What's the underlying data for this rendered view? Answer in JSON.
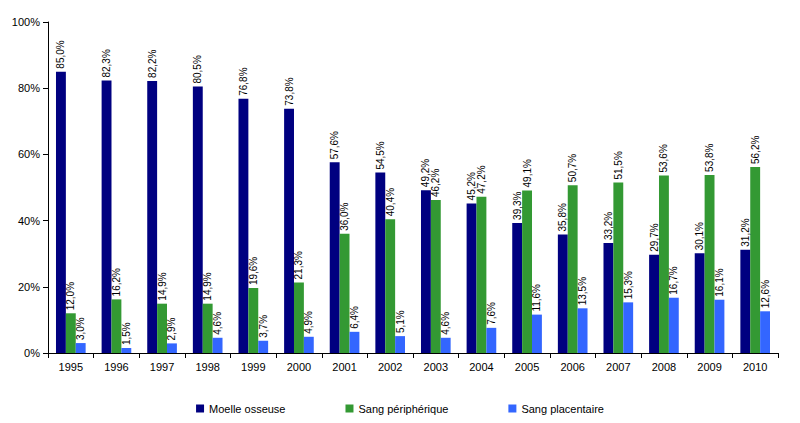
{
  "chart_data": {
    "type": "bar",
    "categories": [
      "1995",
      "1996",
      "1997",
      "1998",
      "1999",
      "2000",
      "2001",
      "2002",
      "2003",
      "2004",
      "2005",
      "2006",
      "2007",
      "2008",
      "2009",
      "2010"
    ],
    "series": [
      {
        "name": "Moelle osseuse",
        "color": "#000080",
        "values": [
          85.0,
          82.3,
          82.2,
          80.5,
          76.8,
          73.8,
          57.6,
          54.5,
          49.2,
          45.2,
          39.3,
          35.8,
          33.2,
          29.7,
          30.1,
          31.2
        ],
        "value_labels": [
          "85,0%",
          "82,3%",
          "82,2%",
          "80,5%",
          "76,8%",
          "73,8%",
          "57,6%",
          "54,5%",
          "49,2%",
          "45,2%",
          "39,3%",
          "35,8%",
          "33,2%",
          "29,7%",
          "30,1%",
          "31,2%"
        ]
      },
      {
        "name": "Sang périphérique",
        "color": "#339933",
        "values": [
          12.0,
          16.2,
          14.9,
          14.9,
          19.6,
          21.3,
          36.0,
          40.4,
          46.2,
          47.2,
          49.1,
          50.7,
          51.5,
          53.6,
          53.8,
          56.2
        ],
        "value_labels": [
          "12,0%",
          "16,2%",
          "14,9%",
          "14,9%",
          "19,6%",
          "21,3%",
          "36,0%",
          "40,4%",
          "46,2%",
          "47,2%",
          "49,1%",
          "50,7%",
          "51,5%",
          "53,6%",
          "53,8%",
          "56,2%"
        ]
      },
      {
        "name": "Sang placentaire",
        "color": "#3366ff",
        "values": [
          3.0,
          1.5,
          2.9,
          4.6,
          3.7,
          4.9,
          6.4,
          5.1,
          4.6,
          7.6,
          11.6,
          13.5,
          15.3,
          16.7,
          16.1,
          12.6
        ],
        "value_labels": [
          "3,0%",
          "1,5%",
          "2,9%",
          "4,6%",
          "3,7%",
          "4,9%",
          "6,4%",
          "5,1%",
          "4,6%",
          "7,6%",
          "11,6%",
          "13,5%",
          "15,3%",
          "16,7%",
          "16,1%",
          "12,6%"
        ]
      }
    ],
    "ylim": [
      0,
      100
    ],
    "yticks": [
      {
        "value": 0,
        "label": "0%"
      },
      {
        "value": 20,
        "label": "20%"
      },
      {
        "value": 40,
        "label": "40%"
      },
      {
        "value": 60,
        "label": "60%"
      },
      {
        "value": 80,
        "label": "80%"
      },
      {
        "value": 100,
        "label": "100%"
      }
    ],
    "grid": false,
    "legend": "bottom",
    "data_labels": true
  }
}
